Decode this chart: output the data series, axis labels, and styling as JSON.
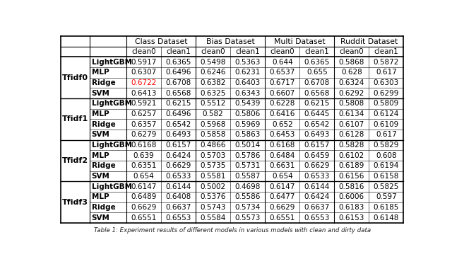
{
  "caption": "Table 1: Experiment results of different models in various models with clean and dirty data",
  "row_groups": [
    "Tfidf0",
    "Tfidf1",
    "Tfidf2",
    "Tfidf3"
  ],
  "row_models": [
    "LightGBM",
    "MLP",
    "Ridge",
    "SVM"
  ],
  "col_groups": [
    "Class Dataset",
    "Bias Dataset",
    "Multi Dataset",
    "Ruddit Dataset"
  ],
  "data": {
    "Tfidf0": {
      "LightGBM": [
        "0.5917",
        "0.6365",
        "0.5498",
        "0.5363",
        "0.644",
        "0.6365",
        "0.5868",
        "0.5872"
      ],
      "MLP": [
        "0.6307",
        "0.6496",
        "0.6246",
        "0.6231",
        "0.6537",
        "0.655",
        "0.628",
        "0.617"
      ],
      "Ridge": [
        "0.6722",
        "0.6708",
        "0.6382",
        "0.6403",
        "0.6717",
        "0.6708",
        "0.6324",
        "0.6303"
      ],
      "SVM": [
        "0.6413",
        "0.6568",
        "0.6325",
        "0.6343",
        "0.6607",
        "0.6568",
        "0.6292",
        "0.6299"
      ]
    },
    "Tfidf1": {
      "LightGBM": [
        "0.5921",
        "0.6215",
        "0.5512",
        "0.5439",
        "0.6228",
        "0.6215",
        "0.5808",
        "0.5809"
      ],
      "MLP": [
        "0.6257",
        "0.6496",
        "0.582",
        "0.5806",
        "0.6416",
        "0.6445",
        "0.6134",
        "0.6124"
      ],
      "Ridge": [
        "0.6357",
        "0.6542",
        "0.5968",
        "0.5969",
        "0.652",
        "0.6542",
        "0.6107",
        "0.6109"
      ],
      "SVM": [
        "0.6279",
        "0.6493",
        "0.5858",
        "0.5863",
        "0.6453",
        "0.6493",
        "0.6128",
        "0.617"
      ]
    },
    "Tfidf2": {
      "LightGBM": [
        "0.6168",
        "0.6157",
        "0.4866",
        "0.5014",
        "0.6168",
        "0.6157",
        "0.5828",
        "0.5829"
      ],
      "MLP": [
        "0.639",
        "0.6424",
        "0.5703",
        "0.5786",
        "0.6484",
        "0.6459",
        "0.6102",
        "0.608"
      ],
      "Ridge": [
        "0.6351",
        "0.6629",
        "0.5735",
        "0.5731",
        "0.6631",
        "0.6629",
        "0.6189",
        "0.6194"
      ],
      "SVM": [
        "0.654",
        "0.6533",
        "0.5581",
        "0.5587",
        "0.654",
        "0.6533",
        "0.6156",
        "0.6158"
      ]
    },
    "Tfidf3": {
      "LightGBM": [
        "0.6147",
        "0.6144",
        "0.5002",
        "0.4698",
        "0.6147",
        "0.6144",
        "0.5816",
        "0.5825"
      ],
      "MLP": [
        "0.6489",
        "0.6408",
        "0.5376",
        "0.5586",
        "0.6477",
        "0.6424",
        "0.6006",
        "0.597"
      ],
      "Ridge": [
        "0.6629",
        "0.6637",
        "0.5743",
        "0.5734",
        "0.6629",
        "0.6637",
        "0.6183",
        "0.6185"
      ],
      "SVM": [
        "0.6551",
        "0.6553",
        "0.5584",
        "0.5573",
        "0.6551",
        "0.6553",
        "0.6153",
        "0.6148"
      ]
    }
  },
  "red_cell": {
    "group": "Tfidf0",
    "model": "Ridge",
    "col_idx": 0
  },
  "background_color": "#ffffff",
  "text_color": "#000000",
  "red_color": "#ff0000",
  "figure_width": 6.4,
  "figure_height": 3.73,
  "dpi": 100
}
